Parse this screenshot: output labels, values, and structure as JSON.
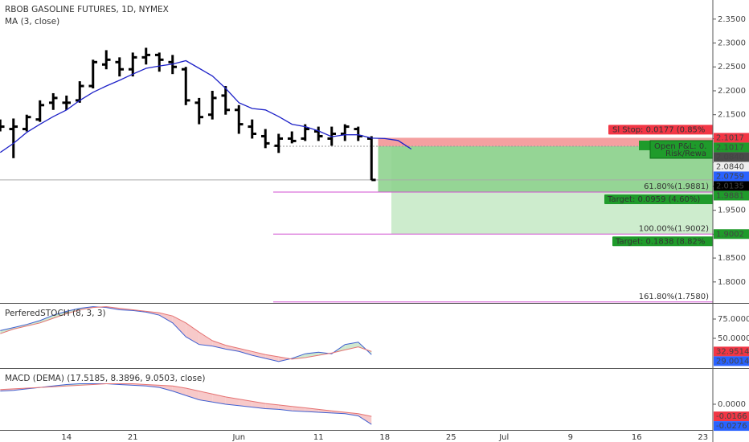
{
  "chart_data": [
    {
      "type": "ohlc",
      "title": "RBOB GASOLINE FUTURES, 1D, NYMEX",
      "color": "#000000",
      "categories": [
        null,
        null,
        null,
        null,
        null,
        "14",
        null,
        null,
        null,
        null,
        "21",
        null,
        null,
        null,
        null,
        null,
        null,
        null,
        "Jun",
        null,
        null,
        null,
        null,
        null,
        "11",
        null,
        null,
        null,
        null,
        "18",
        null,
        null,
        null,
        null,
        "25",
        null,
        null,
        null,
        "Jul",
        null,
        null,
        null,
        null,
        "9",
        null,
        null,
        null,
        null,
        "16",
        null,
        null,
        null,
        null,
        "23"
      ],
      "open": [
        2.13,
        2.12,
        2.12,
        2.14,
        2.175,
        2.175,
        2.18,
        2.21,
        2.255,
        2.26,
        2.245,
        2.27,
        2.275,
        2.26,
        2.245,
        2.175,
        2.15,
        2.19,
        2.16,
        2.125,
        2.105,
        2.085,
        2.1,
        2.1,
        2.115,
        2.1,
        2.11,
        2.12,
        2.1,
        null,
        null,
        null,
        null,
        null,
        null,
        null,
        null,
        null,
        null,
        null,
        null,
        null,
        null,
        null,
        null,
        null,
        null,
        null,
        null,
        null,
        null,
        null,
        null,
        null
      ],
      "high": [
        2.14,
        2.142,
        2.15,
        2.18,
        2.195,
        2.19,
        2.22,
        2.265,
        2.285,
        2.27,
        2.28,
        2.29,
        2.28,
        2.275,
        2.25,
        2.185,
        2.2,
        2.21,
        2.17,
        2.14,
        2.12,
        2.11,
        2.115,
        2.13,
        2.125,
        2.125,
        2.13,
        2.125,
        2.105,
        null,
        null,
        null,
        null,
        null,
        null,
        null,
        null,
        null,
        null,
        null,
        null,
        null,
        null,
        null,
        null,
        null,
        null,
        null,
        null,
        null,
        null,
        null,
        null,
        null
      ],
      "low": [
        2.115,
        2.059,
        2.115,
        2.135,
        2.16,
        2.16,
        2.175,
        2.205,
        2.245,
        2.23,
        2.23,
        2.255,
        2.24,
        2.235,
        2.17,
        2.13,
        2.14,
        2.15,
        2.11,
        2.1,
        2.08,
        2.07,
        2.09,
        2.095,
        2.095,
        2.085,
        2.095,
        2.095,
        2.013,
        null,
        null,
        null,
        null,
        null,
        null,
        null,
        null,
        null,
        null,
        null,
        null,
        null,
        null,
        null,
        null,
        null,
        null,
        null,
        null,
        null,
        null,
        null,
        null,
        null
      ],
      "close": [
        2.125,
        2.125,
        2.145,
        2.17,
        2.185,
        2.175,
        2.21,
        2.26,
        2.265,
        2.245,
        2.27,
        2.275,
        2.265,
        2.25,
        2.18,
        2.145,
        2.185,
        2.16,
        2.13,
        2.11,
        2.09,
        2.1,
        2.095,
        2.12,
        2.105,
        2.11,
        2.125,
        2.105,
        2.0135,
        null,
        null,
        null,
        null,
        null,
        null,
        null,
        null,
        null,
        null,
        null,
        null,
        null,
        null,
        null,
        null,
        null,
        null,
        null,
        null,
        null,
        null,
        null,
        null,
        null
      ],
      "series": [
        {
          "name": "MA (3, close)",
          "color": "#1e22c8",
          "values": [
            2.071,
            2.09,
            2.113,
            2.13,
            2.146,
            2.16,
            2.18,
            2.197,
            2.21,
            2.222,
            2.235,
            2.247,
            2.252,
            2.256,
            2.263,
            2.247,
            2.231,
            2.205,
            2.175,
            2.163,
            2.16,
            2.146,
            2.13,
            2.125,
            2.116,
            2.104,
            2.108,
            2.108,
            2.101,
            2.1,
            2.096,
            2.078,
            null,
            null,
            null,
            null,
            null,
            null,
            null,
            null,
            null,
            null,
            null,
            null,
            null,
            null,
            null,
            null,
            null,
            null,
            null,
            null,
            null,
            null
          ]
        }
      ],
      "ylim": [
        1.756,
        2.39
      ],
      "yticks": [
        {
          "value": 2.35,
          "label": "2.3500"
        },
        {
          "value": 2.3,
          "label": "2.3000"
        },
        {
          "value": 2.25,
          "label": "2.2500"
        },
        {
          "value": 2.2,
          "label": "2.2000"
        },
        {
          "value": 2.15,
          "label": "2.1500"
        },
        {
          "value": 2.1,
          "label": "2.1000"
        },
        {
          "value": 2.05,
          "label": "2.0500"
        },
        {
          "value": 2.0,
          "label": "2.0000"
        },
        {
          "value": 1.95,
          "label": "1.9500"
        },
        {
          "value": 1.9,
          "label": "1.9000"
        },
        {
          "value": 1.85,
          "label": "1.8500"
        },
        {
          "value": 1.8,
          "label": "1.8000"
        }
      ],
      "price_tags": [
        {
          "value": 2.1017,
          "label": "2.1017",
          "color": "#f23645",
          "text_color": "#ffffff"
        },
        {
          "value": 2.1017,
          "label": "2.1017",
          "color": "#1f9b2b",
          "text_color": "#ffffff"
        },
        {
          "value": 2.084,
          "label": "2.0840",
          "color": "#4a4a4a",
          "text_color": "#ffffff"
        },
        {
          "value": 2.084,
          "label": "2.0840",
          "color": "#eeeeee",
          "text_color": "#222222"
        },
        {
          "value": 2.0759,
          "label": "2.0759",
          "color": "#2962ff",
          "text_color": "#ffffff"
        },
        {
          "value": 2.0135,
          "label": "2.0135",
          "color": "#000000",
          "text_color": "#ffffff"
        },
        {
          "value": 1.9881,
          "label": "1.9881",
          "color": "#1f9b2b",
          "text_color": "#ffffff"
        },
        {
          "value": 1.9002,
          "label": "1.9002",
          "color": "#1f9b2b",
          "text_color": "#ffffff"
        }
      ],
      "fib_levels": [
        {
          "value": 1.9881,
          "label": "61.80%(1.9881)"
        },
        {
          "value": 1.9002,
          "label": "100.00%(1.9002)"
        },
        {
          "value": 1.758,
          "label": "161.80%(1.7580)"
        }
      ],
      "fib_color": "#d04fd0",
      "position": {
        "stop": 2.1017,
        "entry": 2.084,
        "targets": [
          1.9881,
          1.9002
        ],
        "stop_label": "Sl Stop: 0.0177 (0.85%",
        "open_pl_label": "Open P&L: 0.",
        "risk_reward_label": "Risk/Rewa",
        "target_labels": [
          "Target: 0.0959 (4.60%)",
          "Target: 0.1838 (8.82%"
        ],
        "stop_color": "#f4a0a0",
        "target_color": "#8fd38f",
        "target_light_color": "#cdeccd",
        "label_color": "#1f9b2b"
      }
    },
    {
      "type": "line",
      "title": "PerferedSTOCH (8, 3, 3)",
      "series": [
        {
          "color": "#3f5fd0",
          "values": [
            60,
            64,
            68,
            73,
            80,
            85,
            89,
            91,
            90,
            87,
            86,
            84,
            80,
            70,
            52,
            42,
            40,
            36,
            33,
            28,
            24,
            20,
            24,
            30,
            32,
            30,
            42,
            45,
            29.0014,
            null,
            null,
            null,
            null,
            null,
            null,
            null,
            null,
            null,
            null,
            null,
            null,
            null,
            null,
            null,
            null,
            null,
            null,
            null,
            null,
            null,
            null,
            null,
            null,
            null
          ]
        },
        {
          "color": "#e57373",
          "values": [
            56,
            62,
            66,
            70,
            76,
            82,
            87,
            90,
            91,
            89,
            87,
            85,
            83,
            79,
            70,
            58,
            47,
            41,
            37,
            33,
            29,
            26,
            23,
            25,
            28,
            31,
            35,
            39,
            32.9514,
            null,
            null,
            null,
            null,
            null,
            null,
            null,
            null,
            null,
            null,
            null,
            null,
            null,
            null,
            null,
            null,
            null,
            null,
            null,
            null,
            null,
            null,
            null,
            null,
            null
          ]
        }
      ],
      "fill_colors": [
        "#f7c9c9",
        "#cfe8cf"
      ],
      "ylim": [
        12.5,
        94.8
      ],
      "yticks": [
        {
          "value": 75,
          "label": "75.0000"
        },
        {
          "value": 50,
          "label": "50.0000"
        }
      ],
      "price_tags": [
        {
          "value": 32.9514,
          "label": "32.9514",
          "color": "#f23645",
          "text_color": "#ffffff"
        },
        {
          "value": 29.0014,
          "label": "29.0014",
          "color": "#2962ff",
          "text_color": "#ffffff"
        }
      ]
    },
    {
      "type": "line",
      "title": "MACD (DEMA) (17.5185, 8.3896, 9.0503, close)",
      "series": [
        {
          "color": "#3f5fd0",
          "values": [
            0.018,
            0.019,
            0.021,
            0.023,
            0.025,
            0.027,
            0.028,
            0.028,
            0.028,
            0.027,
            0.026,
            0.025,
            0.023,
            0.018,
            0.012,
            0.006,
            0.003,
            0.0,
            -0.002,
            -0.004,
            -0.006,
            -0.007,
            -0.009,
            -0.01,
            -0.011,
            -0.012,
            -0.013,
            -0.016,
            -0.0276,
            null,
            null,
            null,
            null,
            null,
            null,
            null,
            null,
            null,
            null,
            null,
            null,
            null,
            null,
            null,
            null,
            null,
            null,
            null,
            null,
            null,
            null,
            null,
            null,
            null
          ]
        },
        {
          "color": "#e57373",
          "values": [
            0.02,
            0.021,
            0.022,
            0.023,
            0.024,
            0.025,
            0.026,
            0.027,
            0.028,
            0.028,
            0.028,
            0.027,
            0.026,
            0.025,
            0.022,
            0.018,
            0.014,
            0.01,
            0.007,
            0.004,
            0.001,
            -0.001,
            -0.003,
            -0.005,
            -0.007,
            -0.009,
            -0.011,
            -0.013,
            -0.0166,
            null,
            null,
            null,
            null,
            null,
            null,
            null,
            null,
            null,
            null,
            null,
            null,
            null,
            null,
            null,
            null,
            null,
            null,
            null,
            null,
            null,
            null,
            null,
            null,
            null
          ]
        }
      ],
      "fill_colors": [
        "#f7c9c9",
        "#cfe8cf"
      ],
      "ylim": [
        -0.0352,
        0.0484
      ],
      "yticks": [
        {
          "value": 0,
          "label": "0.0000"
        }
      ],
      "price_tags": [
        {
          "value": -0.0166,
          "label": "-0.0166",
          "color": "#f23645",
          "text_color": "#ffffff"
        },
        {
          "value": -0.0276,
          "label": "-0.0276",
          "color": "#2962ff",
          "text_color": "#ffffff"
        }
      ]
    }
  ]
}
